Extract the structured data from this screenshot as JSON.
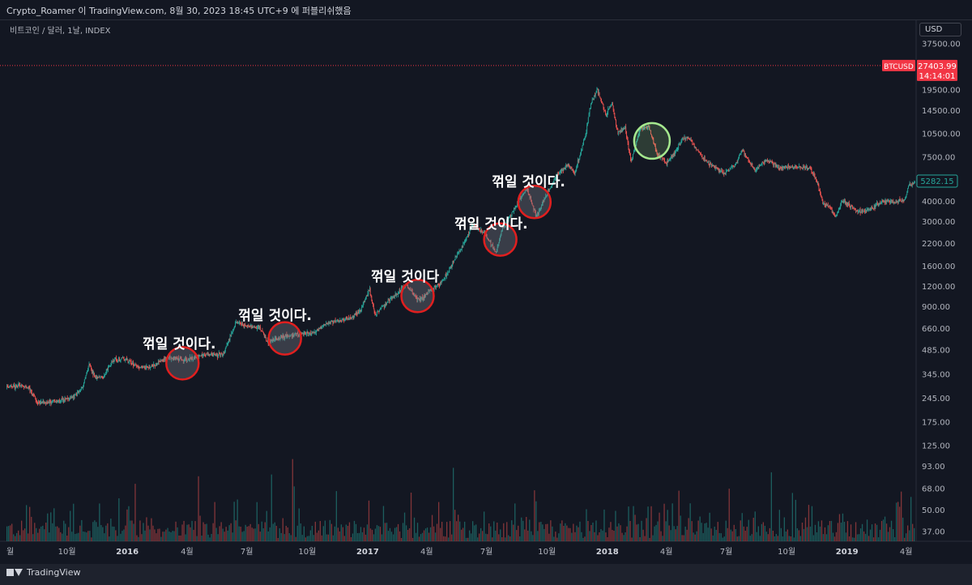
{
  "header": {
    "publish_line": "Crypto_Roamer 이 TradingView.com, 8월 30, 2023 18:45 UTC+9 에 퍼블리쉬했음",
    "symbol_line": "비트코인 / 달러, 1날, INDEX",
    "currency": "USD"
  },
  "price_tags": {
    "ticker": "BTCUSD",
    "last_price": "27403.99",
    "countdown": "14:14:01",
    "cursor_price": "5282.15"
  },
  "annotations": [
    {
      "text": "꺾일 것이다.",
      "x": "2016-04-01"
    },
    {
      "text": "꺾일 것이다.",
      "x": "2016-08-25"
    },
    {
      "text": "꺾일 것이다",
      "x": "2017-03-15"
    },
    {
      "text": "꺾일 것이다.",
      "x": "2017-07-20"
    },
    {
      "text": "꺾일 것이다.",
      "x": "2017-09-15"
    }
  ],
  "footer": {
    "brand": "TradingView"
  },
  "colors": {
    "background": "#131722",
    "up": "#26a69a",
    "down": "#ef5350",
    "circle_red": "#e01f1f",
    "circle_green": "#a5e88e",
    "price_line": "#f23645",
    "axis_text": "#b2b5be"
  },
  "chart_data": {
    "type": "candlestick",
    "title": "비트코인 / 달러, 1날, INDEX",
    "y_scale": "log",
    "ylim": [
      32,
      40000
    ],
    "y_ticks": [
      "37500.00",
      "19500.00",
      "14500.00",
      "10500.00",
      "7500.00",
      "4000.00",
      "3000.00",
      "2200.00",
      "1600.00",
      "1200.00",
      "900.00",
      "660.00",
      "485.00",
      "345.00",
      "245.00",
      "175.00",
      "125.00",
      "93.00",
      "68.00",
      "50.00",
      "37.00"
    ],
    "x_ticks": [
      "월",
      "10월",
      "2016",
      "4월",
      "7월",
      "10월",
      "2017",
      "4월",
      "7월",
      "10월",
      "2018",
      "4월",
      "7월",
      "10월",
      "2019",
      "4월"
    ],
    "x_range": [
      "2015-07-01",
      "2019-04-15"
    ],
    "price_path": [
      [
        "2015-07-01",
        285
      ],
      [
        "2015-07-20",
        290
      ],
      [
        "2015-08-05",
        280
      ],
      [
        "2015-08-18",
        225
      ],
      [
        "2015-09-01",
        230
      ],
      [
        "2015-09-20",
        235
      ],
      [
        "2015-10-10",
        245
      ],
      [
        "2015-10-25",
        285
      ],
      [
        "2015-11-04",
        400
      ],
      [
        "2015-11-12",
        330
      ],
      [
        "2015-11-25",
        325
      ],
      [
        "2015-12-10",
        420
      ],
      [
        "2015-12-25",
        430
      ],
      [
        "2016-01-15",
        385
      ],
      [
        "2016-02-05",
        375
      ],
      [
        "2016-03-01",
        435
      ],
      [
        "2016-04-01",
        420
      ],
      [
        "2016-05-01",
        455
      ],
      [
        "2016-05-25",
        450
      ],
      [
        "2016-06-15",
        720
      ],
      [
        "2016-07-01",
        680
      ],
      [
        "2016-07-20",
        665
      ],
      [
        "2016-08-02",
        540
      ],
      [
        "2016-08-20",
        575
      ],
      [
        "2016-09-15",
        605
      ],
      [
        "2016-10-10",
        620
      ],
      [
        "2016-11-01",
        710
      ],
      [
        "2016-12-01",
        755
      ],
      [
        "2016-12-20",
        830
      ],
      [
        "2017-01-04",
        1140
      ],
      [
        "2017-01-12",
        790
      ],
      [
        "2017-02-01",
        970
      ],
      [
        "2017-03-01",
        1220
      ],
      [
        "2017-03-20",
        970
      ],
      [
        "2017-04-05",
        1120
      ],
      [
        "2017-04-25",
        1280
      ],
      [
        "2017-05-15",
        1800
      ],
      [
        "2017-05-28",
        2200
      ],
      [
        "2017-06-10",
        2900
      ],
      [
        "2017-06-20",
        2650
      ],
      [
        "2017-07-01",
        2450
      ],
      [
        "2017-07-16",
        1920
      ],
      [
        "2017-07-25",
        2700
      ],
      [
        "2017-08-10",
        3400
      ],
      [
        "2017-08-20",
        4100
      ],
      [
        "2017-09-01",
        4800
      ],
      [
        "2017-09-15",
        3200
      ],
      [
        "2017-09-28",
        4200
      ],
      [
        "2017-10-15",
        5700
      ],
      [
        "2017-11-01",
        6700
      ],
      [
        "2017-11-12",
        5900
      ],
      [
        "2017-11-28",
        9900
      ],
      [
        "2017-12-07",
        16000
      ],
      [
        "2017-12-17",
        19500
      ],
      [
        "2017-12-30",
        13500
      ],
      [
        "2018-01-08",
        16200
      ],
      [
        "2018-01-17",
        10500
      ],
      [
        "2018-01-28",
        11500
      ],
      [
        "2018-02-06",
        6900
      ],
      [
        "2018-02-20",
        11200
      ],
      [
        "2018-03-05",
        11500
      ],
      [
        "2018-03-18",
        7800
      ],
      [
        "2018-04-01",
        6900
      ],
      [
        "2018-04-12",
        7800
      ],
      [
        "2018-04-25",
        9600
      ],
      [
        "2018-05-05",
        9800
      ],
      [
        "2018-05-28",
        7300
      ],
      [
        "2018-06-12",
        6500
      ],
      [
        "2018-06-28",
        5900
      ],
      [
        "2018-07-15",
        6700
      ],
      [
        "2018-07-25",
        8300
      ],
      [
        "2018-08-14",
        6200
      ],
      [
        "2018-09-01",
        7200
      ],
      [
        "2018-09-20",
        6400
      ],
      [
        "2018-10-10",
        6500
      ],
      [
        "2018-11-05",
        6400
      ],
      [
        "2018-11-15",
        5500
      ],
      [
        "2018-11-25",
        3900
      ],
      [
        "2018-12-05",
        3700
      ],
      [
        "2018-12-15",
        3200
      ],
      [
        "2018-12-25",
        4000
      ],
      [
        "2019-01-10",
        3600
      ],
      [
        "2019-01-25",
        3450
      ],
      [
        "2019-02-08",
        3600
      ],
      [
        "2019-02-24",
        4000
      ],
      [
        "2019-03-15",
        3950
      ],
      [
        "2019-03-31",
        4100
      ],
      [
        "2019-04-04",
        4950
      ],
      [
        "2019-04-15",
        5200
      ]
    ],
    "highlight_circles": [
      {
        "x": "2016-03-25",
        "y": 400,
        "color": "red"
      },
      {
        "x": "2016-08-28",
        "y": 570,
        "color": "red"
      },
      {
        "x": "2017-03-18",
        "y": 1040,
        "color": "red"
      },
      {
        "x": "2017-07-22",
        "y": 2320,
        "color": "red"
      },
      {
        "x": "2017-09-12",
        "y": 3950,
        "color": "red"
      },
      {
        "x": "2018-03-10",
        "y": 9400,
        "color": "green"
      }
    ],
    "last_price": 27403.99
  }
}
